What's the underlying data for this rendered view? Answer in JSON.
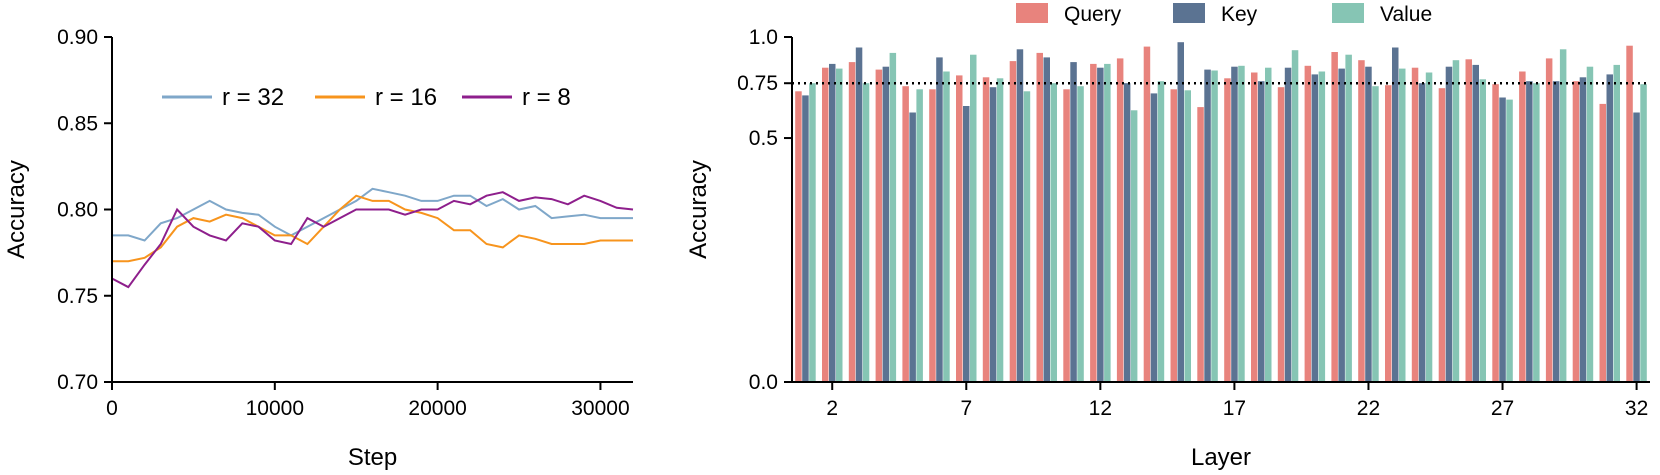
{
  "chart_data": [
    {
      "type": "line",
      "xlabel": "Step",
      "ylabel": "Accuracy",
      "xlim": [
        0,
        32000
      ],
      "ylim": [
        0.7,
        0.9
      ],
      "x_ticks": [
        0,
        10000,
        20000,
        30000
      ],
      "x_tick_labels": [
        "0",
        "10000",
        "20000",
        "30000"
      ],
      "y_ticks": [
        0.7,
        0.75,
        0.8,
        0.85,
        0.9
      ],
      "y_tick_labels": [
        "0.70",
        "0.75",
        "0.80",
        "0.85",
        "0.90"
      ],
      "legend_position": "top-center",
      "series": [
        {
          "name": "r = 32",
          "color": "#7fa7c9",
          "x": [
            0,
            1000,
            2000,
            3000,
            4000,
            5000,
            6000,
            7000,
            8000,
            9000,
            10000,
            11000,
            12000,
            13000,
            14000,
            15000,
            16000,
            17000,
            18000,
            19000,
            20000,
            21000,
            22000,
            23000,
            24000,
            25000,
            26000,
            27000,
            28000,
            29000,
            30000,
            31000,
            32000
          ],
          "y": [
            0.785,
            0.785,
            0.782,
            0.792,
            0.795,
            0.8,
            0.805,
            0.8,
            0.798,
            0.797,
            0.79,
            0.785,
            0.79,
            0.795,
            0.8,
            0.805,
            0.812,
            0.81,
            0.808,
            0.805,
            0.805,
            0.808,
            0.808,
            0.802,
            0.806,
            0.8,
            0.802,
            0.795,
            0.796,
            0.797,
            0.795,
            0.795,
            0.795
          ]
        },
        {
          "name": "r = 16",
          "color": "#f7941d",
          "x": [
            0,
            1000,
            2000,
            3000,
            4000,
            5000,
            6000,
            7000,
            8000,
            9000,
            10000,
            11000,
            12000,
            13000,
            14000,
            15000,
            16000,
            17000,
            18000,
            19000,
            20000,
            21000,
            22000,
            23000,
            24000,
            25000,
            26000,
            27000,
            28000,
            29000,
            30000,
            31000,
            32000
          ],
          "y": [
            0.77,
            0.77,
            0.772,
            0.778,
            0.79,
            0.795,
            0.793,
            0.797,
            0.795,
            0.79,
            0.785,
            0.785,
            0.78,
            0.79,
            0.8,
            0.808,
            0.805,
            0.805,
            0.8,
            0.798,
            0.795,
            0.788,
            0.788,
            0.78,
            0.778,
            0.785,
            0.783,
            0.78,
            0.78,
            0.78,
            0.782,
            0.782,
            0.782
          ]
        },
        {
          "name": "r = 8",
          "color": "#8e1f8c",
          "x": [
            0,
            1000,
            2000,
            3000,
            4000,
            5000,
            6000,
            7000,
            8000,
            9000,
            10000,
            11000,
            12000,
            13000,
            14000,
            15000,
            16000,
            17000,
            18000,
            19000,
            20000,
            21000,
            22000,
            23000,
            24000,
            25000,
            26000,
            27000,
            28000,
            29000,
            30000,
            31000,
            32000
          ],
          "y": [
            0.76,
            0.755,
            0.768,
            0.78,
            0.8,
            0.79,
            0.785,
            0.782,
            0.792,
            0.79,
            0.782,
            0.78,
            0.795,
            0.79,
            0.795,
            0.8,
            0.8,
            0.8,
            0.797,
            0.8,
            0.8,
            0.805,
            0.803,
            0.808,
            0.81,
            0.805,
            0.807,
            0.806,
            0.803,
            0.808,
            0.805,
            0.801,
            0.8
          ]
        }
      ]
    },
    {
      "type": "bar",
      "xlabel": "Layer",
      "ylabel": "Accuracy",
      "y_scale": "sqrt",
      "ylim": [
        0.0,
        1.0
      ],
      "y_ticks": [
        0.0,
        0.5,
        0.75,
        1.0
      ],
      "y_tick_labels": [
        "0.0",
        "0.5",
        "0.75",
        "1.0"
      ],
      "x_tick_labels": [
        "2",
        "7",
        "12",
        "17",
        "22",
        "27",
        "32"
      ],
      "reference_line": {
        "y": 0.75,
        "style": "dotted"
      },
      "legend_position": "top",
      "categories": [
        1,
        2,
        3,
        4,
        5,
        6,
        7,
        8,
        9,
        10,
        11,
        12,
        13,
        14,
        15,
        16,
        17,
        18,
        19,
        20,
        21,
        22,
        23,
        24,
        25,
        26,
        27,
        28,
        29,
        30,
        31,
        32
      ],
      "series": [
        {
          "name": "Query",
          "color": "#e8837d",
          "values": [
            0.71,
            0.83,
            0.86,
            0.82,
            0.735,
            0.72,
            0.79,
            0.78,
            0.865,
            0.91,
            0.72,
            0.85,
            0.88,
            0.945,
            0.72,
            0.635,
            0.775,
            0.805,
            0.73,
            0.84,
            0.915,
            0.87,
            0.74,
            0.83,
            0.725,
            0.875,
            0.745,
            0.81,
            0.88,
            0.76,
            0.65,
            0.95
          ]
        },
        {
          "name": "Key",
          "color": "#5b7392",
          "values": [
            0.69,
            0.85,
            0.94,
            0.835,
            0.61,
            0.885,
            0.64,
            0.73,
            0.93,
            0.885,
            0.86,
            0.83,
            0.75,
            0.7,
            0.97,
            0.82,
            0.835,
            0.76,
            0.83,
            0.795,
            0.825,
            0.835,
            0.94,
            0.75,
            0.835,
            0.845,
            0.68,
            0.76,
            0.76,
            0.78,
            0.795,
            0.61
          ]
        },
        {
          "name": "Value",
          "color": "#86c5b4",
          "values": [
            0.75,
            0.825,
            0.75,
            0.91,
            0.72,
            0.81,
            0.9,
            0.775,
            0.71,
            0.75,
            0.735,
            0.85,
            0.62,
            0.76,
            0.715,
            0.815,
            0.84,
            0.83,
            0.925,
            0.81,
            0.9,
            0.735,
            0.825,
            0.805,
            0.87,
            0.77,
            0.67,
            0.75,
            0.93,
            0.835,
            0.845,
            0.745
          ]
        }
      ]
    }
  ]
}
